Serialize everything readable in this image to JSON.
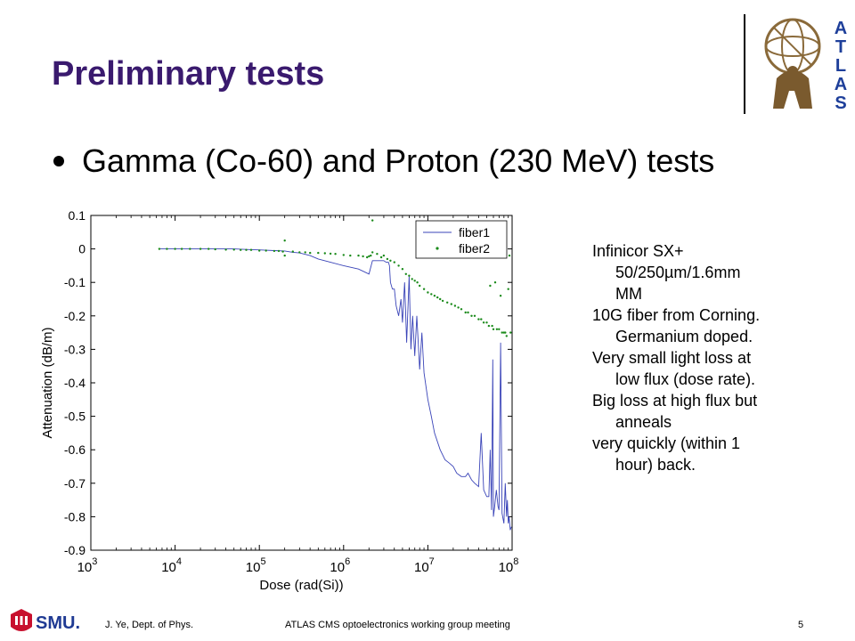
{
  "slide": {
    "title": "Preliminary tests",
    "bullet": "Gamma (Co-60) and Proton (230 MeV) tests"
  },
  "logo": {
    "letters": [
      "A",
      "T",
      "L",
      "A",
      "S"
    ],
    "icon": "atlas-figure-icon"
  },
  "notes": [
    {
      "text": "Infinicor SX+",
      "indent": false
    },
    {
      "text": "50/250µm/1.6mm",
      "indent": true
    },
    {
      "text": "MM",
      "indent": true
    },
    {
      "text": "10G fiber from Corning.",
      "indent": false
    },
    {
      "text": "Germanium doped.",
      "indent": true
    },
    {
      "text": "Very small light loss at",
      "indent": false
    },
    {
      "text": "low flux (dose rate).",
      "indent": true
    },
    {
      "text": "Big loss at high flux but",
      "indent": false
    },
    {
      "text": "anneals",
      "indent": true
    },
    {
      "text": "very quickly (within 1",
      "indent": false
    },
    {
      "text": "hour) back.",
      "indent": true
    }
  ],
  "footer": {
    "org_logo_text": "SMU.",
    "author": "J. Ye, Dept. of Phys.",
    "meeting": "ATLAS CMS optoelectronics working group meeting",
    "page": "5"
  },
  "colors": {
    "title": "#3a1a6e",
    "fiber1": "#3a44b8",
    "fiber2": "#1a8a1a",
    "smu_red": "#c8102e",
    "smu_blue": "#1f3a93",
    "atlas_letters": "#1e3f9a"
  },
  "chart_data": {
    "type": "line",
    "xlabel": "Dose (rad(Si))",
    "ylabel": "Attenuation (dB/m)",
    "xscale": "log",
    "xlim": [
      1000,
      100000000
    ],
    "ylim": [
      -0.9,
      0.1
    ],
    "xticks": [
      {
        "base": "10",
        "exp": "3"
      },
      {
        "base": "10",
        "exp": "4"
      },
      {
        "base": "10",
        "exp": "5"
      },
      {
        "base": "10",
        "exp": "6"
      },
      {
        "base": "10",
        "exp": "7"
      },
      {
        "base": "10",
        "exp": "8"
      }
    ],
    "yticks": [
      "0.1",
      "0",
      "-0.1",
      "-0.2",
      "-0.3",
      "-0.4",
      "-0.5",
      "-0.6",
      "-0.7",
      "-0.8",
      "-0.9"
    ],
    "ytick_values": [
      0.1,
      0,
      -0.1,
      -0.2,
      -0.3,
      -0.4,
      -0.5,
      -0.6,
      -0.7,
      -0.8,
      -0.9
    ],
    "legend_position": "top-right",
    "series": [
      {
        "name": "fiber1",
        "style": "line",
        "x": [
          6500,
          10000,
          20000,
          30000,
          50000,
          80000,
          100000,
          150000,
          200000,
          250000,
          300000,
          400000,
          500000,
          700000,
          1000000,
          1500000,
          2000000,
          2200000,
          2300000,
          2500000,
          2800000,
          3000000,
          3200000,
          3400000,
          3500000,
          3600000,
          3800000,
          4000000,
          4200000,
          4500000,
          4800000,
          5000000,
          5300000,
          5600000,
          6000000,
          6300000,
          6600000,
          7000000,
          7400000,
          8000000,
          8500000,
          9000000,
          10000000,
          11000000,
          12000000,
          14000000,
          16000000,
          18000000,
          20000000,
          22000000,
          25000000,
          28000000,
          30000000,
          33000000,
          36000000,
          40000000,
          43000000,
          46000000,
          50000000,
          53000000,
          55000000,
          57000000,
          59000000,
          60000000,
          62000000,
          65000000,
          68000000,
          70000000,
          73000000,
          76000000,
          80000000,
          83000000,
          86000000,
          88000000,
          90000000,
          92000000,
          95000000,
          98000000
        ],
        "y": [
          0.0,
          0.0,
          0.0,
          0.0,
          0.0,
          -0.002,
          -0.003,
          -0.005,
          -0.006,
          -0.01,
          -0.012,
          -0.02,
          -0.03,
          -0.04,
          -0.05,
          -0.06,
          -0.075,
          -0.035,
          -0.035,
          -0.035,
          -0.035,
          -0.035,
          -0.04,
          -0.04,
          -0.05,
          -0.1,
          -0.12,
          -0.12,
          -0.17,
          -0.2,
          -0.15,
          -0.22,
          -0.1,
          -0.28,
          -0.08,
          -0.3,
          -0.2,
          -0.32,
          -0.2,
          -0.36,
          -0.25,
          -0.37,
          -0.45,
          -0.5,
          -0.55,
          -0.6,
          -0.63,
          -0.64,
          -0.65,
          -0.67,
          -0.68,
          -0.68,
          -0.67,
          -0.69,
          -0.7,
          -0.71,
          -0.55,
          -0.72,
          -0.74,
          -0.74,
          -0.6,
          -0.78,
          -0.33,
          -0.8,
          -0.77,
          -0.72,
          -0.77,
          -0.78,
          -0.28,
          -0.79,
          -0.82,
          -0.7,
          -0.8,
          -0.75,
          -0.82,
          -0.8,
          -0.84,
          -0.83
        ]
      },
      {
        "name": "fiber2",
        "style": "markers",
        "x": [
          6500,
          8000,
          10000,
          12000,
          15000,
          20000,
          25000,
          30000,
          40000,
          50000,
          60000,
          70000,
          80000,
          100000,
          120000,
          150000,
          170000,
          190000,
          200000,
          200000,
          250000,
          300000,
          350000,
          400000,
          500000,
          600000,
          700000,
          800000,
          1000000,
          1200000,
          1500000,
          1700000,
          1900000,
          2000000,
          2100000,
          2200000,
          2200000,
          2500000,
          2800000,
          3000000,
          3300000,
          3600000,
          4000000,
          4500000,
          5000000,
          5500000,
          6000000,
          6500000,
          7000000,
          7500000,
          8000000,
          9000000,
          10000000,
          11000000,
          12000000,
          13000000,
          14000000,
          15000000,
          17000000,
          19000000,
          21000000,
          23000000,
          25000000,
          28000000,
          30000000,
          33000000,
          36000000,
          40000000,
          43000000,
          46000000,
          50000000,
          53000000,
          55000000,
          58000000,
          60000000,
          63000000,
          66000000,
          70000000,
          73000000,
          76000000,
          80000000,
          83000000,
          86000000,
          90000000,
          93000000,
          96000000
        ],
        "y": [
          0.0,
          0.0,
          0.0,
          0.0,
          0.0,
          0.0,
          0.0,
          -0.001,
          -0.002,
          -0.002,
          -0.003,
          -0.003,
          -0.003,
          -0.005,
          -0.005,
          -0.006,
          -0.006,
          -0.008,
          0.025,
          -0.02,
          -0.008,
          -0.01,
          -0.01,
          -0.012,
          -0.012,
          -0.013,
          -0.014,
          -0.015,
          -0.018,
          -0.02,
          -0.02,
          -0.022,
          -0.025,
          -0.022,
          -0.02,
          0.085,
          -0.01,
          -0.015,
          -0.025,
          -0.02,
          -0.03,
          -0.035,
          -0.04,
          -0.05,
          -0.06,
          -0.075,
          -0.08,
          -0.09,
          -0.095,
          -0.1,
          -0.11,
          -0.12,
          -0.13,
          -0.135,
          -0.14,
          -0.145,
          -0.15,
          -0.155,
          -0.16,
          -0.165,
          -0.17,
          -0.175,
          -0.18,
          -0.19,
          -0.19,
          -0.2,
          -0.2,
          -0.21,
          -0.21,
          -0.22,
          -0.22,
          -0.23,
          -0.11,
          -0.23,
          -0.24,
          -0.1,
          -0.24,
          -0.24,
          -0.14,
          -0.25,
          -0.25,
          -0.25,
          -0.26,
          -0.12,
          -0.02,
          -0.25
        ]
      }
    ]
  }
}
